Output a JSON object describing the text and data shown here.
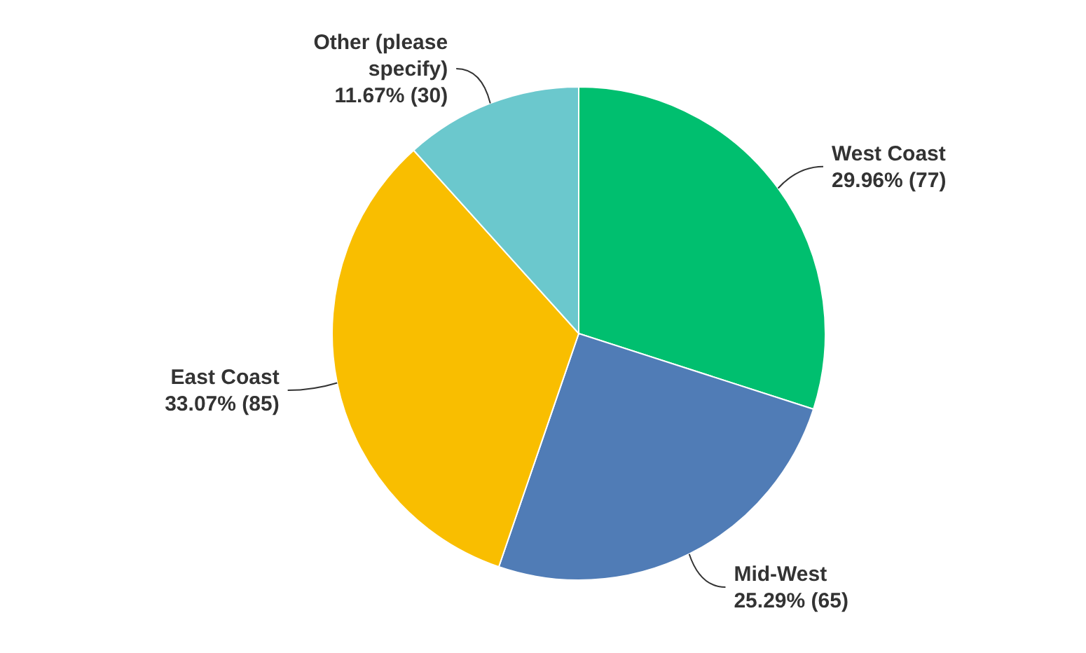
{
  "chart_data": {
    "type": "pie",
    "categories": [
      "West Coast",
      "Mid-West",
      "East Coast",
      "Other (please specify)"
    ],
    "values": [
      77,
      65,
      85,
      30
    ],
    "colors": [
      "#00bf6f",
      "#507cb6",
      "#f9be00",
      "#6bc8cd"
    ],
    "value_labels": [
      "29.96% (77)",
      "25.29% (65)",
      "33.07% (85)",
      "11.67% (30)"
    ]
  }
}
